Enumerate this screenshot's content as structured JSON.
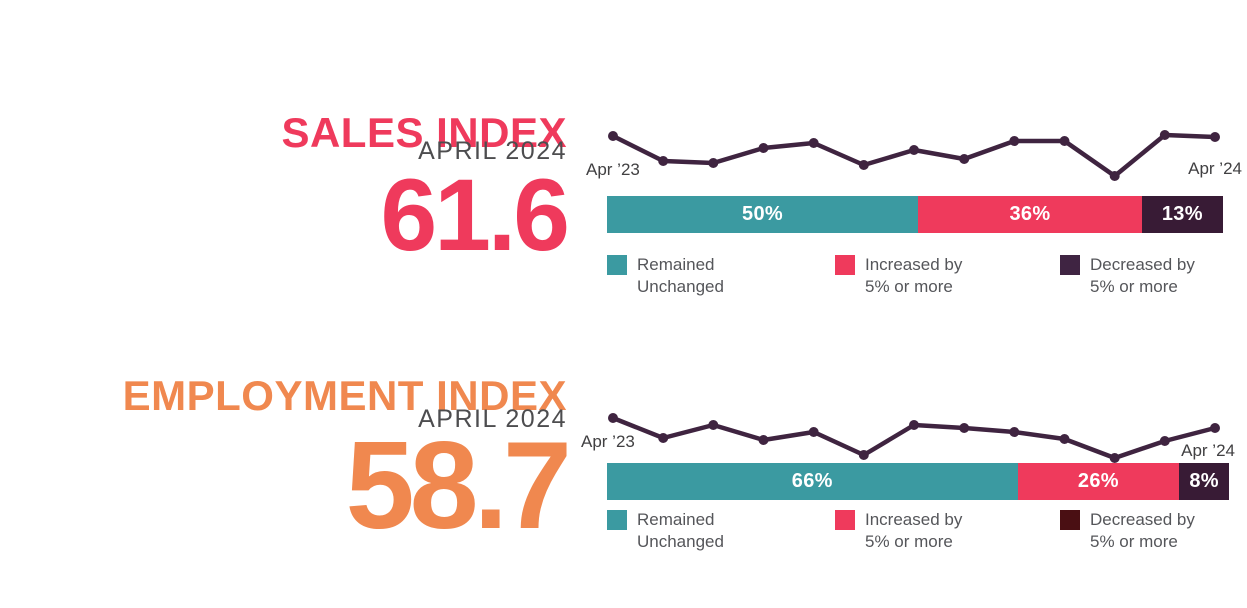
{
  "page": {
    "background": "#ffffff"
  },
  "colors": {
    "teal": "#3b9aa1",
    "pink": "#ef3a5c",
    "orange": "#f0884f",
    "bar_dark_purple": "#381b35",
    "sparkline_purple": "#3f2440",
    "subtitle_gray": "#4d4d4f",
    "legend_text_gray": "#55565a",
    "axis_label_gray": "#414042"
  },
  "chart_data": [
    {
      "type": "line+stacked-bar",
      "title": "SALES INDEX",
      "subtitle": "APRIL 2024",
      "value": "61.6",
      "accent_color": "#ef3a5c",
      "sparkline": {
        "label_start": "Apr ’23",
        "label_end": "Apr ’24",
        "line_color": "#3f2440",
        "x_range": [
          "Apr 2023",
          "Apr 2024"
        ],
        "points_normalized": [
          84,
          34,
          30,
          60,
          70,
          26,
          56,
          38,
          74,
          74,
          4,
          86,
          82
        ]
      },
      "bar": {
        "segments": [
          {
            "name": "Remained Unchanged",
            "value": 50,
            "label": "50%",
            "color": "#3b9aa1"
          },
          {
            "name": "Increased by 5% or more",
            "value": 36,
            "label": "36%",
            "color": "#ef3a5c"
          },
          {
            "name": "Decreased by 5% or more",
            "value": 13,
            "label": "13%",
            "color": "#381b35"
          }
        ]
      },
      "legend": [
        {
          "line1": "Remained",
          "line2": "Unchanged",
          "swatch_color": "#3b9aa1"
        },
        {
          "line1": "Increased by",
          "line2": "5% or more",
          "swatch_color": "#ef3a5c"
        },
        {
          "line1": "Decreased by",
          "line2": "5% or more",
          "swatch_color": "#3f2442"
        }
      ]
    },
    {
      "type": "line+stacked-bar",
      "title": "EMPLOYMENT INDEX",
      "subtitle": "APRIL 2024",
      "value": "58.7",
      "accent_color": "#f0884f",
      "sparkline": {
        "label_start": "Apr ’23",
        "label_end": "Apr ’24",
        "line_color": "#3f2440",
        "x_range": [
          "Apr 2023",
          "Apr 2024"
        ],
        "points_normalized": [
          90,
          50,
          76,
          46,
          62,
          16,
          76,
          70,
          62,
          48,
          10,
          44,
          70
        ]
      },
      "bar": {
        "segments": [
          {
            "name": "Remained Unchanged",
            "value": 66,
            "label": "66%",
            "color": "#3b9aa1"
          },
          {
            "name": "Increased by 5% or more",
            "value": 26,
            "label": "26%",
            "color": "#ef3a5c"
          },
          {
            "name": "Decreased by 5% or more",
            "value": 8,
            "label": "8%",
            "color": "#381b35"
          }
        ]
      },
      "legend": [
        {
          "line1": "Remained",
          "line2": "Unchanged",
          "swatch_color": "#3b9aa1"
        },
        {
          "line1": "Increased by",
          "line2": "5% or more",
          "swatch_color": "#ef3a5c"
        },
        {
          "line1": "Decreased by",
          "line2": "5% or more",
          "swatch_color": "#4a0f13"
        }
      ]
    }
  ]
}
